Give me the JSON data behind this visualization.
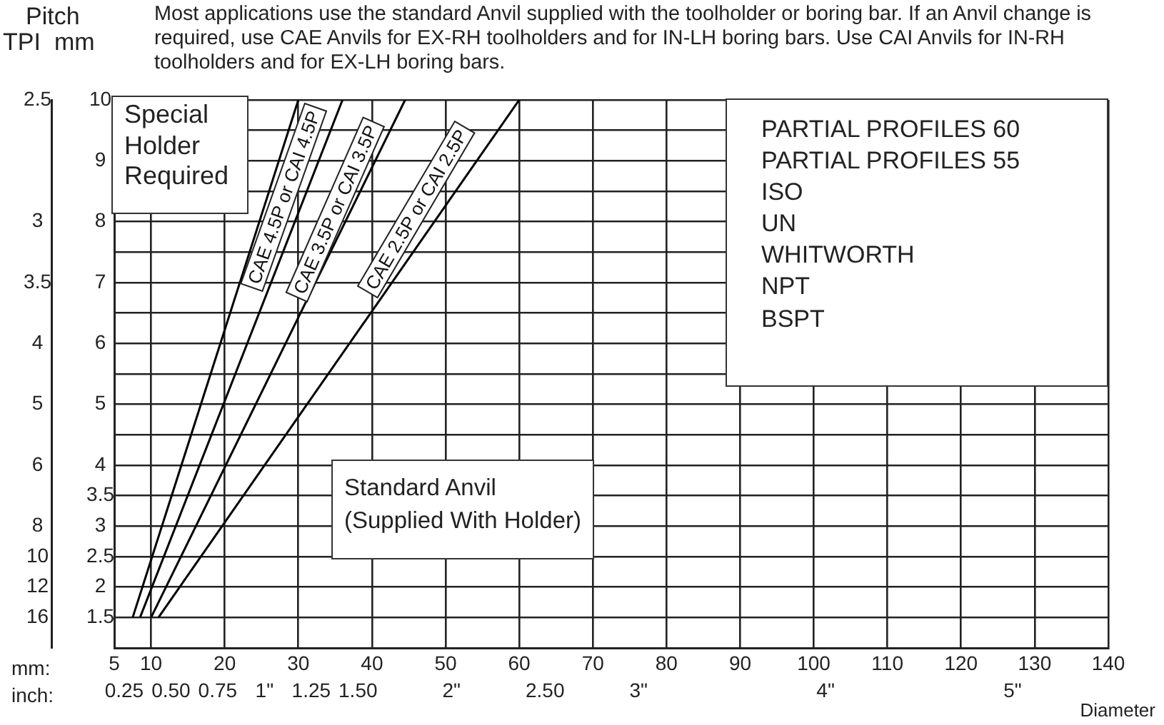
{
  "chart_data": {
    "type": "line",
    "title": "Most applications use the standard Anvil supplied with the toolholder or boring bar. If an Anvil change is required, use CAE Anvils for EX-RH toolholders and for IN-LH boring bars. Use CAI Anvils for IN-RH toolholders and for EX-LH boring bars.",
    "xlabel": "Diameter",
    "ylabel": "mm",
    "y2label": "TPI",
    "annotations": [
      "Pitch",
      "Special Holder Required",
      "PARTIAL PROFILES 60\nPARTIAL PROFILES 55\nISO\nUN\nWHITWORTH\nNPT\nBSPT",
      "Standard Anvil\n(Supplied With Holder)",
      "mm:",
      "inch:",
      "CAE 4.5P or CAI 4.5P",
      "CAE 3.5P or CAI 3.5P",
      "CAE 2.5P or CAI 2.5P"
    ],
    "series": [
      {
        "color": "#000000",
        "x": [
          7.5,
          30
        ],
        "values": [
          1.5,
          10
        ]
      },
      {
        "color": "#000000",
        "x": [
          8.5,
          36
        ],
        "values": [
          1.5,
          10
        ]
      },
      {
        "color": "#000000",
        "x": [
          10,
          44.5
        ],
        "values": [
          1.5,
          10
        ]
      },
      {
        "color": "#000000",
        "x": [
          11,
          60
        ],
        "values": [
          1.5,
          10
        ]
      }
    ],
    "xlim": [
      5,
      140
    ],
    "xticks": [
      5,
      10,
      20,
      30,
      40,
      50,
      60,
      70,
      80,
      90,
      100,
      110,
      120,
      130,
      140
    ],
    "x2lim": [
      0.19685,
      5.5118
    ],
    "x2ticks": [
      0.25,
      {
        "value": 0.5,
        "label": "0.50"
      },
      0.75,
      {
        "value": 1,
        "label": "1\""
      },
      1.25,
      {
        "value": 1.5,
        "label": "1.50"
      },
      {
        "value": 2,
        "label": "2\""
      },
      {
        "value": 2.5,
        "label": "2.50"
      },
      {
        "value": 3,
        "label": "3\""
      },
      {
        "value": 4,
        "label": "4\""
      },
      {
        "value": 5,
        "label": "5\""
      }
    ],
    "ylim": [
      1,
      10
    ],
    "yticks": [
      1.5,
      2,
      2.5,
      3,
      3.5,
      4,
      {
        "value": 4.5,
        "label": null
      },
      5,
      {
        "value": 5.5,
        "label": null
      },
      6,
      {
        "value": 6.5,
        "label": null
      },
      7,
      {
        "value": 7.5,
        "label": null
      },
      8,
      {
        "value": 8.5,
        "label": null
      },
      9,
      {
        "value": 9.5,
        "label": null
      },
      10
    ],
    "y2_categories": [
      "2.5",
      null,
      null,
      null,
      "3",
      null,
      "3.5",
      null,
      "4",
      null,
      "5",
      null,
      "6",
      null,
      "8",
      "10",
      "12",
      "16",
      null
    ],
    "grid": true,
    "marker": "none",
    "line_style": "solid"
  }
}
